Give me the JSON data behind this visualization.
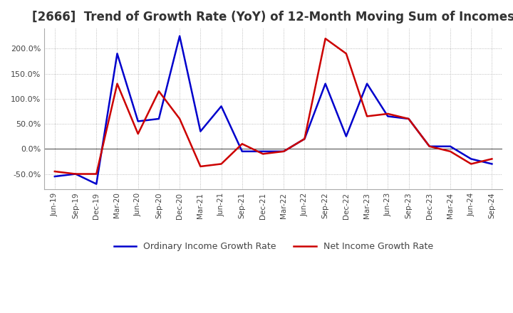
{
  "title": "[2666]  Trend of Growth Rate (YoY) of 12-Month Moving Sum of Incomes",
  "title_fontsize": 12,
  "background_color": "#ffffff",
  "grid_color": "#aaaaaa",
  "ylim": [
    -80,
    240
  ],
  "yticks": [
    -50.0,
    0.0,
    50.0,
    100.0,
    150.0,
    200.0
  ],
  "ordinary_color": "#0000cc",
  "net_color": "#cc0000",
  "x_labels": [
    "Jun-19",
    "Sep-19",
    "Dec-19",
    "Mar-20",
    "Jun-20",
    "Sep-20",
    "Dec-20",
    "Mar-21",
    "Jun-21",
    "Sep-21",
    "Dec-21",
    "Mar-22",
    "Jun-22",
    "Sep-22",
    "Dec-22",
    "Mar-23",
    "Jun-23",
    "Sep-23",
    "Dec-23",
    "Mar-24",
    "Jun-24",
    "Sep-24"
  ],
  "ordinary_income": [
    -55.0,
    -50.0,
    -70.0,
    190.0,
    55.0,
    60.0,
    225.0,
    35.0,
    85.0,
    -5.0,
    -5.0,
    -5.0,
    20.0,
    130.0,
    25.0,
    130.0,
    65.0,
    60.0,
    5.0,
    5.0,
    -20.0,
    -30.0
  ],
  "net_income": [
    -45.0,
    -50.0,
    -50.0,
    130.0,
    30.0,
    115.0,
    60.0,
    -35.0,
    -30.0,
    10.0,
    -10.0,
    -5.0,
    20.0,
    220.0,
    190.0,
    65.0,
    70.0,
    60.0,
    5.0,
    -5.0,
    -30.0,
    -20.0
  ],
  "legend_ordinary": "Ordinary Income Growth Rate",
  "legend_net": "Net Income Growth Rate",
  "line_width": 1.8
}
